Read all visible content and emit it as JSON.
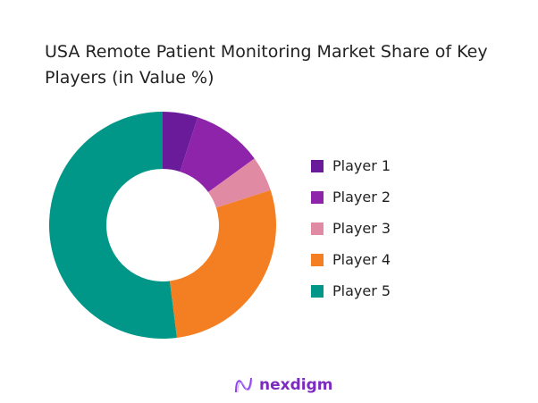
{
  "chart_data": {
    "type": "pie",
    "subtype": "donut",
    "title": "USA Remote Patient Monitoring Market Share of Key Players (in Value %)",
    "categories": [
      "Player 1",
      "Player 2",
      "Player 3",
      "Player 4",
      "Player 5"
    ],
    "values": [
      5,
      10,
      5,
      28,
      52
    ],
    "colors": [
      "#6a1b9a",
      "#8e24aa",
      "#e08aa4",
      "#f47f22",
      "#009688"
    ],
    "legend_position": "right"
  },
  "logo": {
    "text": "nexdigm"
  }
}
